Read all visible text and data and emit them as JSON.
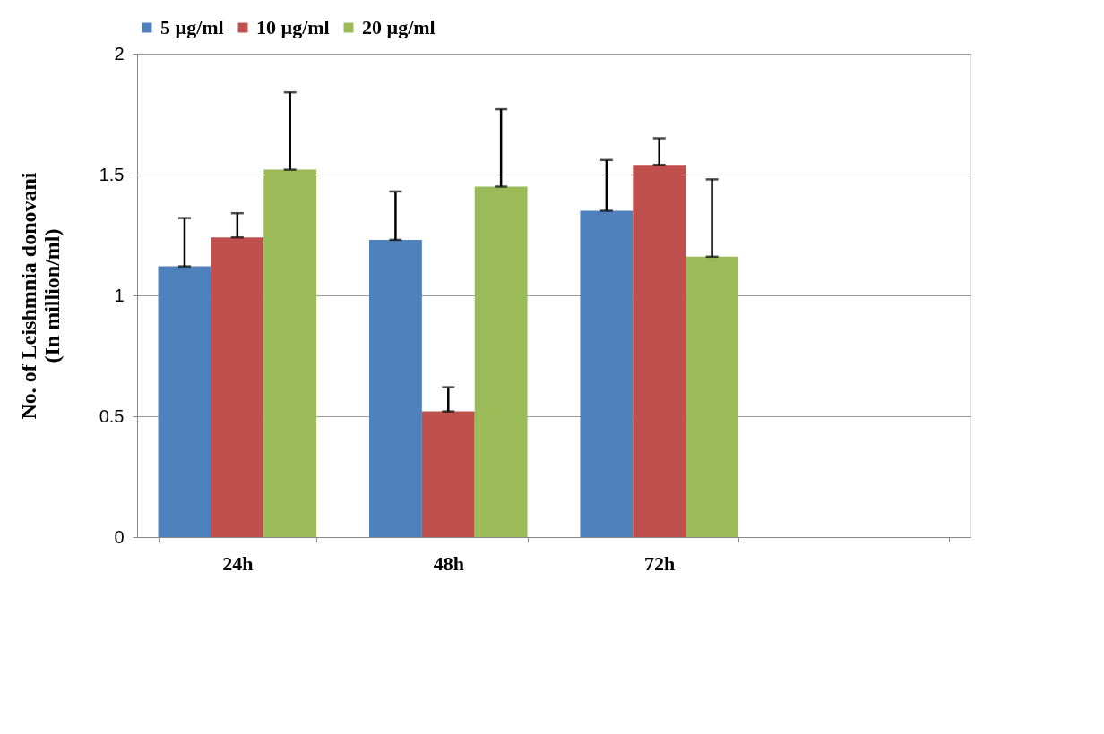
{
  "chart_data": {
    "type": "bar",
    "ylabel": "No. of Leishmnia donovani\n(In million/ml)",
    "categories": [
      "24h",
      "48h",
      "72h",
      null
    ],
    "series": [
      {
        "name": "5 µg/ml",
        "color": "#4f81bd",
        "values": [
          1.12,
          1.23,
          1.35,
          null
        ],
        "errors": [
          [
            1.12,
            1.32
          ],
          [
            1.23,
            1.43
          ],
          [
            1.35,
            1.56
          ],
          null
        ]
      },
      {
        "name": "10 µg/ml",
        "color": "#c0504d",
        "values": [
          1.24,
          0.52,
          1.54,
          null
        ],
        "errors": [
          [
            1.24,
            1.34
          ],
          [
            0.52,
            0.62
          ],
          [
            1.54,
            1.65
          ],
          null
        ]
      },
      {
        "name": "20 µg/ml",
        "color": "#9bbb59",
        "values": [
          1.52,
          1.45,
          1.16,
          null
        ],
        "errors": [
          [
            1.52,
            1.84
          ],
          [
            1.45,
            1.77
          ],
          [
            1.16,
            1.48
          ],
          null
        ]
      }
    ],
    "ylim": [
      0,
      2
    ],
    "yticks": [
      0,
      0.5,
      1,
      1.5,
      2
    ],
    "grid": "y",
    "legend": "top"
  }
}
